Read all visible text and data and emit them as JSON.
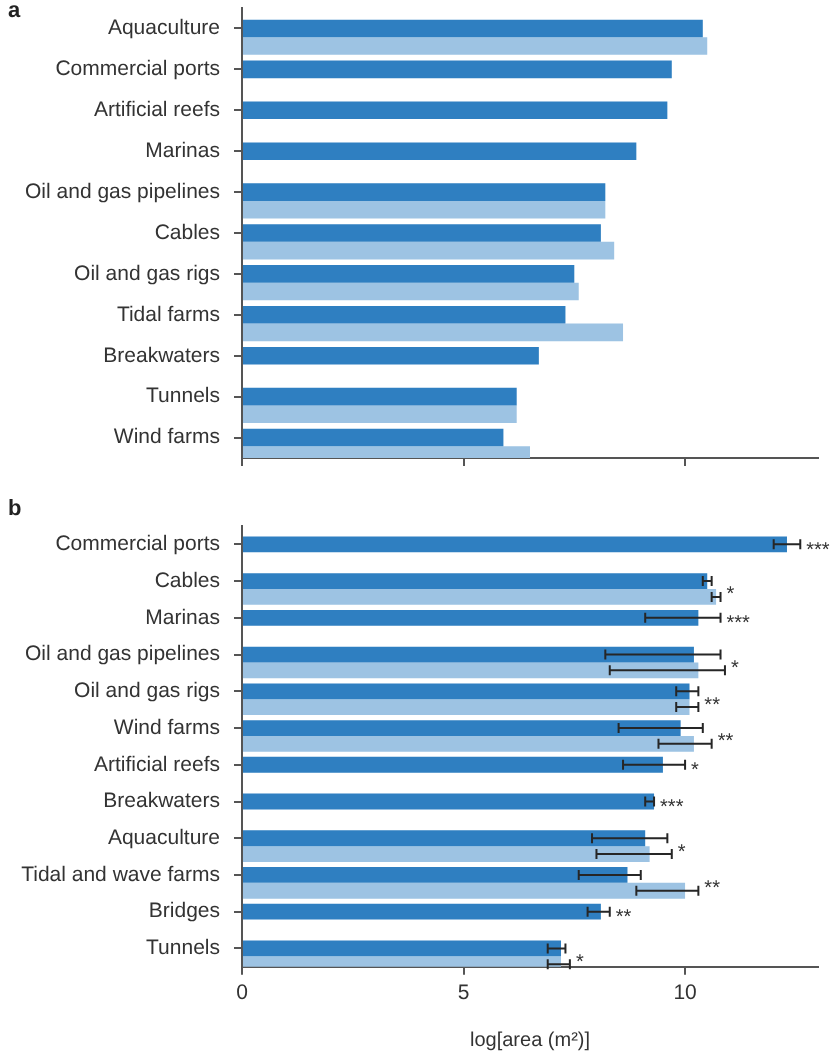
{
  "chart_data": [
    {
      "type": "bar",
      "orientation": "horizontal",
      "title": "a",
      "tick_labels": "y",
      "categories": [
        "Aquaculture",
        "Commercial ports",
        "Artificial reefs",
        "Marinas",
        "Oil and gas pipelines",
        "Cables",
        "Oil and gas rigs",
        "Tidal farms",
        "Breakwaters",
        "Tunnels",
        "Wind farms"
      ],
      "series": [
        {
          "color": "#2f7fc1",
          "values": [
            10.4,
            9.7,
            9.6,
            8.9,
            8.2,
            8.1,
            7.5,
            7.3,
            6.7,
            6.2,
            5.9
          ]
        },
        {
          "color": "#9dc3e3",
          "values": [
            10.5,
            null,
            null,
            null,
            8.2,
            8.4,
            7.6,
            8.6,
            null,
            6.2,
            6.5
          ]
        }
      ],
      "xlim": [
        0,
        13
      ],
      "xticks": [
        0,
        5,
        10
      ]
    },
    {
      "type": "bar",
      "orientation": "horizontal",
      "title": "b",
      "xlabel": "log[area (m²)]",
      "categories": [
        "Commercial ports",
        "Cables",
        "Marinas",
        "Oil and gas pipelines",
        "Oil and gas rigs",
        "Wind farms",
        "Artificial reefs",
        "Breakwaters",
        "Aquaculture",
        "Tidal and wave farms",
        "Bridges",
        "Tunnels"
      ],
      "series": [
        {
          "color": "#2f7fc1",
          "values": [
            12.3,
            10.5,
            10.3,
            10.2,
            10.1,
            9.9,
            9.5,
            9.3,
            9.1,
            8.7,
            8.1,
            7.2
          ],
          "errors": [
            [
              12.0,
              12.6
            ],
            [
              10.4,
              10.6
            ],
            [
              9.1,
              10.8
            ],
            [
              8.2,
              10.8
            ],
            [
              9.8,
              10.3
            ],
            [
              8.5,
              10.4
            ],
            [
              8.6,
              10.0
            ],
            [
              9.1,
              9.3
            ],
            [
              7.9,
              9.6
            ],
            [
              7.6,
              9.0
            ],
            [
              7.8,
              8.3
            ],
            [
              6.9,
              7.3
            ]
          ]
        },
        {
          "color": "#9dc3e3",
          "values": [
            null,
            10.7,
            null,
            10.3,
            10.1,
            10.2,
            null,
            null,
            9.2,
            10.0,
            null,
            7.2
          ],
          "errors": [
            null,
            [
              10.6,
              10.8
            ],
            null,
            [
              8.3,
              10.9
            ],
            [
              9.8,
              10.3
            ],
            [
              9.4,
              10.6
            ],
            null,
            null,
            [
              8.0,
              9.7
            ],
            [
              8.9,
              10.3
            ],
            null,
            [
              6.9,
              7.4
            ]
          ]
        }
      ],
      "xlim": [
        0,
        13
      ],
      "xticks": [
        0,
        5,
        10
      ],
      "annotations": [
        {
          "text": "***",
          "x": 12.6,
          "y": "Commercial ports"
        },
        {
          "text": "*",
          "x": 10.8,
          "y": "Cables"
        },
        {
          "text": "***",
          "x": 10.8,
          "y": "Marinas"
        },
        {
          "text": "*",
          "x": 10.9,
          "y": "Oil and gas pipelines"
        },
        {
          "text": "**",
          "x": 10.3,
          "y": "Oil and gas rigs"
        },
        {
          "text": "**",
          "x": 10.6,
          "y": "Wind farms"
        },
        {
          "text": "*",
          "x": 10.0,
          "y": "Artificial reefs"
        },
        {
          "text": "***",
          "x": 9.3,
          "y": "Breakwaters"
        },
        {
          "text": "*",
          "x": 9.7,
          "y": "Aquaculture"
        },
        {
          "text": "**",
          "x": 10.0,
          "y": "Tidal and wave farms"
        },
        {
          "text": "**",
          "x": 8.3,
          "y": "Bridges"
        },
        {
          "text": "*",
          "x": 7.4,
          "y": "Tunnels"
        }
      ]
    }
  ]
}
